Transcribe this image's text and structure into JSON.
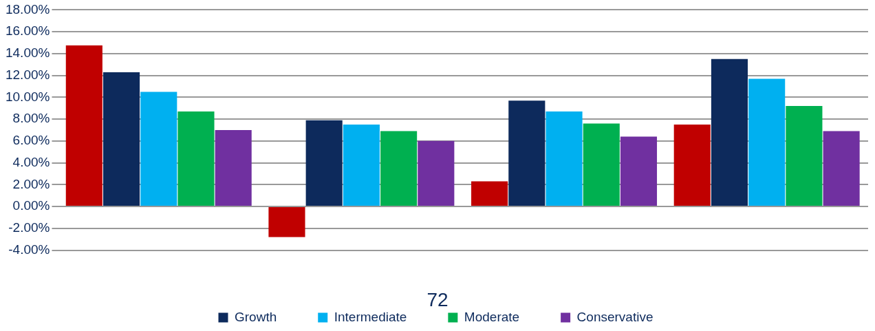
{
  "chart_data": {
    "type": "bar",
    "categories": [
      null,
      null,
      null,
      null
    ],
    "series": [
      {
        "color": "#c00000",
        "values": [
          14.75,
          -2.8,
          2.3,
          7.5
        ]
      },
      {
        "name": "Growth",
        "color": "#0d2a5c",
        "values": [
          12.3,
          7.9,
          9.7,
          13.5
        ]
      },
      {
        "name": "Intermediate",
        "color": "#00b0f0",
        "values": [
          10.5,
          7.5,
          8.7,
          11.7
        ]
      },
      {
        "name": "Moderate",
        "color": "#00b050",
        "values": [
          8.7,
          6.9,
          7.6,
          9.2
        ]
      },
      {
        "name": "Conservative",
        "color": "#7030a0",
        "values": [
          7.0,
          6.0,
          6.4,
          6.9
        ]
      }
    ],
    "ylim": [
      -4,
      18
    ],
    "yticks": [
      {
        "value": -4,
        "label": "-4.00%"
      },
      {
        "value": -2,
        "label": "-2.00%"
      },
      {
        "value": 0,
        "label": "0.00%"
      },
      {
        "value": 2,
        "label": "2.00%"
      },
      {
        "value": 4,
        "label": "4.00%"
      },
      {
        "value": 6,
        "label": "6.00%"
      },
      {
        "value": 8,
        "label": "8.00%"
      },
      {
        "value": 10,
        "label": "10.00%"
      },
      {
        "value": 12,
        "label": "12.00%"
      },
      {
        "value": 14,
        "label": "14.00%"
      },
      {
        "value": 16,
        "label": "16.00%"
      },
      {
        "value": 18,
        "label": "18.00%"
      }
    ],
    "grid": "y",
    "legend": "bottom",
    "annotations": [
      "72"
    ]
  }
}
